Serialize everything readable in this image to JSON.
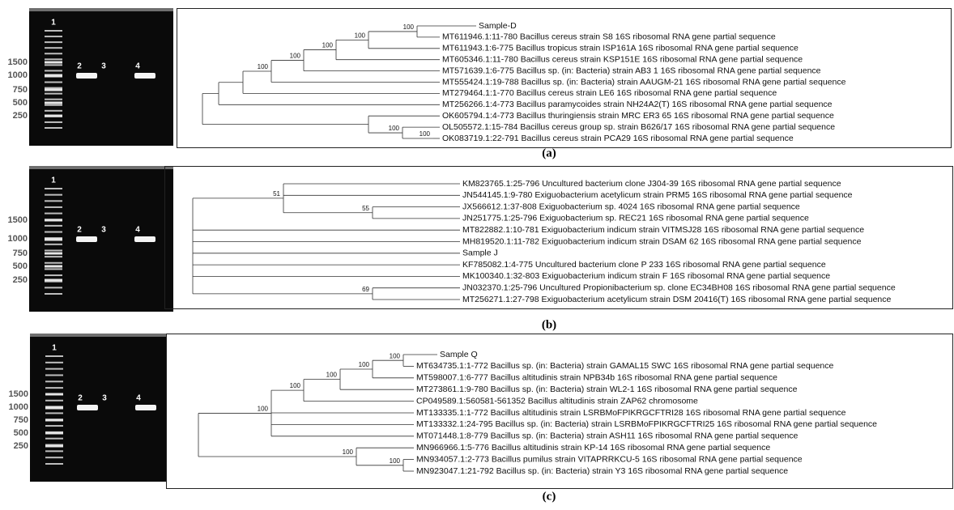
{
  "panels": [
    {
      "caption": "(a)",
      "gel": {
        "lanes": [
          "1",
          "2",
          "3",
          "4"
        ],
        "ladder": [
          "1500",
          "1000",
          "750",
          "500",
          "250"
        ]
      },
      "tree": {
        "leaves": [
          "Sample-D",
          "MT611946.1:11-780 Bacillus cereus strain S8 16S ribosomal RNA gene partial sequence",
          "MT611943.1:6-775 Bacillus tropicus strain ISP161A 16S ribosomal RNA gene partial sequence",
          "MT605346.1:11-780 Bacillus cereus strain KSP151E 16S ribosomal RNA gene partial sequence",
          "MT571639.1:6-775 Bacillus sp. (in: Bacteria) strain AB3 1 16S ribosomal RNA gene partial sequence",
          "MT555424.1:19-788 Bacillus sp. (in: Bacteria) strain AAUGM-21 16S ribosomal RNA gene partial sequence",
          "MT279464.1:1-770 Bacillus cereus strain LE6 16S ribosomal RNA gene partial sequence",
          "MT256266.1:4-773 Bacillus paramycoides strain NH24A2(T) 16S ribosomal RNA gene partial sequence",
          "OK605794.1:4-773 Bacillus thuringiensis strain MRC ER3 65 16S ribosomal RNA gene partial sequence",
          "OL505572.1:15-784 Bacillus cereus group sp. strain B626/17 16S ribosomal RNA gene partial sequence",
          "OK083719.1:22-791 Bacillus cereus strain PCA29 16S ribosomal RNA gene partial sequence"
        ],
        "bootstrap": [
          100,
          100,
          100,
          100,
          100,
          100,
          100
        ]
      }
    },
    {
      "caption": "(b)",
      "gel": {
        "lanes": [
          "1",
          "2",
          "3",
          "4"
        ],
        "ladder": [
          "1500",
          "1000",
          "750",
          "500",
          "250"
        ]
      },
      "tree": {
        "leaves": [
          "KM823765.1:25-796 Uncultured bacterium clone J304-39 16S ribosomal RNA gene partial sequence",
          "JN544145.1:9-780 Exiguobacterium acetylicum strain PRM5 16S ribosomal RNA gene partial sequence",
          "JX566612.1:37-808 Exiguobacterium sp. 4024 16S ribosomal RNA gene partial sequence",
          "JN251775.1:25-796 Exiguobacterium sp. REC21 16S ribosomal RNA gene partial sequence",
          "MT822882.1:10-781 Exiguobacterium indicum strain VITMSJ28 16S ribosomal RNA gene partial sequence",
          "MH819520.1:11-782 Exiguobacterium indicum strain DSAM 62 16S ribosomal RNA gene partial sequence",
          "Sample J",
          "KF785082.1:4-775 Uncultured bacterium clone P 233 16S ribosomal RNA gene partial sequence",
          "MK100340.1:32-803 Exiguobacterium indicum strain F 16S ribosomal RNA gene partial sequence",
          "JN032370.1:25-796 Uncultured Propionibacterium sp. clone EC34BH08 16S ribosomal RNA gene partial sequence",
          "MT256271.1:27-798 Exiguobacterium acetylicum strain DSM 20416(T) 16S ribosomal RNA gene partial sequence"
        ],
        "bootstrap": [
          51,
          55,
          69
        ]
      }
    },
    {
      "caption": "(c)",
      "gel": {
        "lanes": [
          "1",
          "2",
          "3",
          "4"
        ],
        "ladder": [
          "1500",
          "1000",
          "750",
          "500",
          "250"
        ]
      },
      "tree": {
        "leaves": [
          "Sample Q",
          "MT634735.1:1-772 Bacillus sp. (in: Bacteria) strain GAMAL15 SWC 16S ribosomal RNA gene partial sequence",
          "MT598007.1:6-777 Bacillus altitudinis strain NPB34b 16S ribosomal RNA gene partial sequence",
          "MT273861.1:9-780 Bacillus sp. (in: Bacteria) strain WL2-1 16S ribosomal RNA gene partial sequence",
          "CP049589.1:560581-561352 Bacillus altitudinis strain ZAP62 chromosome",
          "MT133335.1:1-772 Bacillus altitudinis strain LSRBMoFPIKRGCFTRI28 16S ribosomal RNA gene partial sequence",
          "MT133332.1:24-795 Bacillus sp. (in: Bacteria) strain LSRBMoFPIKRGCFTRI25 16S ribosomal RNA gene partial sequence",
          "MT071448.1:8-779 Bacillus sp. (in: Bacteria) strain ASH11 16S ribosomal RNA gene partial sequence",
          "MN966966.1:5-776 Bacillus altitudinis strain KP-14 16S ribosomal RNA gene partial sequence",
          "MN934057.1:2-773 Bacillus pumilus strain VITAPRRKCU-5 16S ribosomal RNA gene partial sequence",
          "MN923047.1:21-792 Bacillus sp. (in: Bacteria) strain Y3 16S ribosomal RNA gene partial sequence"
        ],
        "bootstrap": [
          100,
          100,
          100,
          100,
          100,
          100,
          100
        ]
      }
    }
  ]
}
